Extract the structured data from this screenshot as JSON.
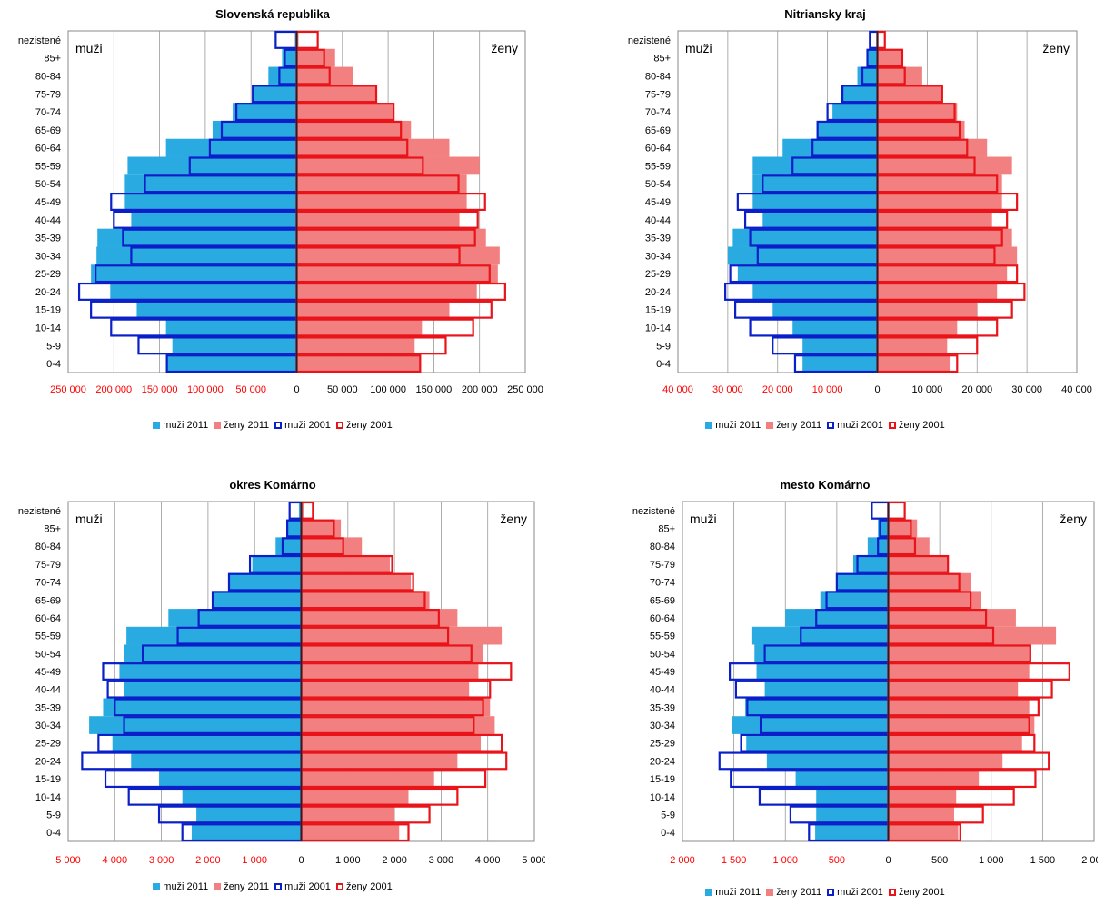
{
  "colors": {
    "muzi_2011": "#29ABE2",
    "zeny_2011": "#F28080",
    "muzi_2001": "#0A1FC8",
    "zeny_2001": "#E8141A",
    "axis_label": "#FF0000",
    "center_line": "#222222",
    "grid": "#999999"
  },
  "legend": [
    {
      "label": "muži 2011",
      "style": "fill",
      "color": "#29ABE2"
    },
    {
      "label": "ženy  2011",
      "style": "fill",
      "color": "#F28080"
    },
    {
      "label": "muži 2001",
      "style": "outline",
      "color": "#0A1FC8"
    },
    {
      "label": "ženy  2001",
      "style": "outline",
      "color": "#E8141A"
    }
  ],
  "chart_data": [
    {
      "type": "bar",
      "title": "Slovenská republika",
      "left_label": "muži",
      "right_label": "ženy",
      "categories": [
        "0-4",
        "5-9",
        "10-14",
        "15-19",
        "20-24",
        "25-29",
        "30-34",
        "35-39",
        "40-44",
        "45-49",
        "50-54",
        "55-59",
        "60-64",
        "65-69",
        "70-74",
        "75-79",
        "80-84",
        "85+",
        "nezistené"
      ],
      "xlim": [
        -250000,
        250000
      ],
      "ticks": [
        {
          "value": -250000,
          "label": "250 000"
        },
        {
          "value": -200000,
          "label": "200 000"
        },
        {
          "value": -150000,
          "label": "150 000"
        },
        {
          "value": -100000,
          "label": "100 000"
        },
        {
          "value": -50000,
          "label": "50 000"
        },
        {
          "value": 0,
          "label": "0"
        },
        {
          "value": 50000,
          "label": "50 000"
        },
        {
          "value": 100000,
          "label": "100 000"
        },
        {
          "value": 150000,
          "label": "150 000"
        },
        {
          "value": 200000,
          "label": "200 000"
        },
        {
          "value": 250000,
          "label": "250 000"
        }
      ],
      "series": [
        {
          "name": "muži 2011",
          "values": [
            143000,
            136000,
            143000,
            175000,
            204000,
            225000,
            219000,
            218000,
            181000,
            188000,
            188000,
            185000,
            143000,
            92000,
            70000,
            49000,
            31000,
            16000,
            2000
          ]
        },
        {
          "name": "ženy  2011",
          "values": [
            136000,
            129000,
            137000,
            167000,
            197000,
            220000,
            222000,
            207000,
            178000,
            186000,
            186000,
            200000,
            167000,
            125000,
            106000,
            87000,
            62000,
            42000,
            2000
          ]
        },
        {
          "name": "muži 2001",
          "values": [
            142000,
            173000,
            203000,
            225000,
            238000,
            220000,
            181000,
            190000,
            200000,
            203000,
            166000,
            117000,
            95000,
            82000,
            66000,
            48000,
            19000,
            13000,
            23000
          ]
        },
        {
          "name": "ženy  2001",
          "values": [
            135000,
            163000,
            193000,
            213000,
            228000,
            211000,
            178000,
            195000,
            198000,
            206000,
            177000,
            138000,
            121000,
            114000,
            106000,
            87000,
            36000,
            30000,
            23000
          ]
        }
      ]
    },
    {
      "type": "bar",
      "title": "Nitriansky kraj",
      "left_label": "muži",
      "right_label": "ženy",
      "categories": [
        "0-4",
        "5-9",
        "10-14",
        "15-19",
        "20-24",
        "25-29",
        "30-34",
        "35-39",
        "40-44",
        "45-49",
        "50-54",
        "55-59",
        "60-64",
        "65-69",
        "70-74",
        "75-79",
        "80-84",
        "85+",
        "nezistené"
      ],
      "xlim": [
        -40000,
        40000
      ],
      "ticks": [
        {
          "value": -40000,
          "label": "40 000"
        },
        {
          "value": -30000,
          "label": "30 000"
        },
        {
          "value": -20000,
          "label": "20 000"
        },
        {
          "value": -10000,
          "label": "10 000"
        },
        {
          "value": 0,
          "label": "0"
        },
        {
          "value": 10000,
          "label": "10 000"
        },
        {
          "value": 20000,
          "label": "20 000"
        },
        {
          "value": 30000,
          "label": "30 000"
        },
        {
          "value": 40000,
          "label": "40 000"
        }
      ],
      "series": [
        {
          "name": "muži 2011",
          "values": [
            15000,
            15000,
            17000,
            21000,
            25000,
            28000,
            30000,
            29000,
            23000,
            25000,
            25000,
            25000,
            19000,
            12000,
            9000,
            7000,
            4000,
            2000,
            200
          ]
        },
        {
          "name": "ženy  2011",
          "values": [
            14500,
            14000,
            16000,
            20000,
            24000,
            26000,
            28000,
            27000,
            23000,
            25000,
            25000,
            27000,
            22000,
            17500,
            16000,
            13000,
            9000,
            5000,
            200
          ]
        },
        {
          "name": "muži 2001",
          "values": [
            16500,
            21000,
            25500,
            28500,
            30500,
            29500,
            24000,
            25500,
            26500,
            28000,
            23000,
            17000,
            13000,
            12000,
            10000,
            7000,
            3000,
            2000,
            1500
          ]
        },
        {
          "name": "ženy  2001",
          "values": [
            16000,
            20000,
            24000,
            27000,
            29500,
            28000,
            23500,
            25000,
            26000,
            28000,
            24000,
            19500,
            18000,
            16500,
            15500,
            13000,
            5500,
            5000,
            1500
          ]
        }
      ]
    },
    {
      "type": "bar",
      "title": "okres Komárno",
      "left_label": "muži",
      "right_label": "ženy",
      "categories": [
        "0-4",
        "5-9",
        "10-14",
        "15-19",
        "20-24",
        "25-29",
        "30-34",
        "35-39",
        "40-44",
        "45-49",
        "50-54",
        "55-59",
        "60-64",
        "65-69",
        "70-74",
        "75-79",
        "80-84",
        "85+",
        "nezistené"
      ],
      "xlim": [
        -5000,
        5000
      ],
      "ticks": [
        {
          "value": -5000,
          "label": "5 000"
        },
        {
          "value": -4000,
          "label": "4 000"
        },
        {
          "value": -3000,
          "label": "3 000"
        },
        {
          "value": -2000,
          "label": "2 000"
        },
        {
          "value": -1000,
          "label": "1 000"
        },
        {
          "value": 0,
          "label": "0"
        },
        {
          "value": 1000,
          "label": "1 000"
        },
        {
          "value": 2000,
          "label": "2 000"
        },
        {
          "value": 3000,
          "label": "3 000"
        },
        {
          "value": 4000,
          "label": "4 000"
        },
        {
          "value": 5000,
          "label": "5 000"
        }
      ],
      "series": [
        {
          "name": "muži 2011",
          "values": [
            2350,
            2250,
            2550,
            3050,
            3650,
            4050,
            4550,
            4250,
            3800,
            3900,
            3800,
            3750,
            2850,
            1900,
            1550,
            1050,
            550,
            300,
            50
          ]
        },
        {
          "name": "ženy  2011",
          "values": [
            2100,
            2000,
            2300,
            2850,
            3350,
            3850,
            4150,
            4050,
            3600,
            3800,
            3900,
            4300,
            3350,
            2750,
            2350,
            1900,
            1300,
            850,
            50
          ]
        },
        {
          "name": "muži 2001",
          "values": [
            2550,
            3050,
            3700,
            4200,
            4700,
            4350,
            3800,
            4000,
            4150,
            4250,
            3400,
            2650,
            2200,
            1900,
            1550,
            1100,
            400,
            300,
            250
          ]
        },
        {
          "name": "ženy  2001",
          "values": [
            2300,
            2750,
            3350,
            3950,
            4400,
            4300,
            3700,
            3900,
            4050,
            4500,
            3650,
            3150,
            2950,
            2650,
            2400,
            1950,
            900,
            700,
            250
          ]
        }
      ]
    },
    {
      "type": "bar",
      "title": "mesto Komárno",
      "left_label": "muži",
      "right_label": "ženy",
      "categories": [
        "0-4",
        "5-9",
        "10-14",
        "15-19",
        "20-24",
        "25-29",
        "30-34",
        "35-39",
        "40-44",
        "45-49",
        "50-54",
        "55-59",
        "60-64",
        "65-69",
        "70-74",
        "75-79",
        "80-84",
        "85+",
        "nezistené"
      ],
      "xlim": [
        -2000,
        2000
      ],
      "ticks": [
        {
          "value": -2000,
          "label": "2 000"
        },
        {
          "value": -1500,
          "label": "1 500"
        },
        {
          "value": -1000,
          "label": "1 000"
        },
        {
          "value": -500,
          "label": "500"
        },
        {
          "value": 0,
          "label": "0"
        },
        {
          "value": 500,
          "label": "500"
        },
        {
          "value": 1000,
          "label": "1 000"
        },
        {
          "value": 1500,
          "label": "1 500"
        },
        {
          "value": 2000,
          "label": "2 000"
        }
      ],
      "series": [
        {
          "name": "muži 2011",
          "values": [
            710,
            700,
            700,
            900,
            1180,
            1380,
            1520,
            1390,
            1200,
            1280,
            1300,
            1330,
            1000,
            660,
            500,
            340,
            200,
            100,
            10
          ]
        },
        {
          "name": "ženy  2011",
          "values": [
            680,
            640,
            660,
            880,
            1110,
            1300,
            1420,
            1370,
            1260,
            1370,
            1390,
            1630,
            1240,
            900,
            800,
            580,
            400,
            280,
            10
          ]
        },
        {
          "name": "muži 2001",
          "values": [
            770,
            950,
            1250,
            1530,
            1640,
            1430,
            1240,
            1370,
            1480,
            1540,
            1200,
            850,
            700,
            600,
            500,
            300,
            100,
            80,
            160
          ]
        },
        {
          "name": "ženy  2001",
          "values": [
            700,
            920,
            1220,
            1430,
            1560,
            1420,
            1370,
            1460,
            1590,
            1760,
            1380,
            1020,
            950,
            800,
            690,
            580,
            260,
            220,
            160
          ]
        }
      ]
    }
  ]
}
